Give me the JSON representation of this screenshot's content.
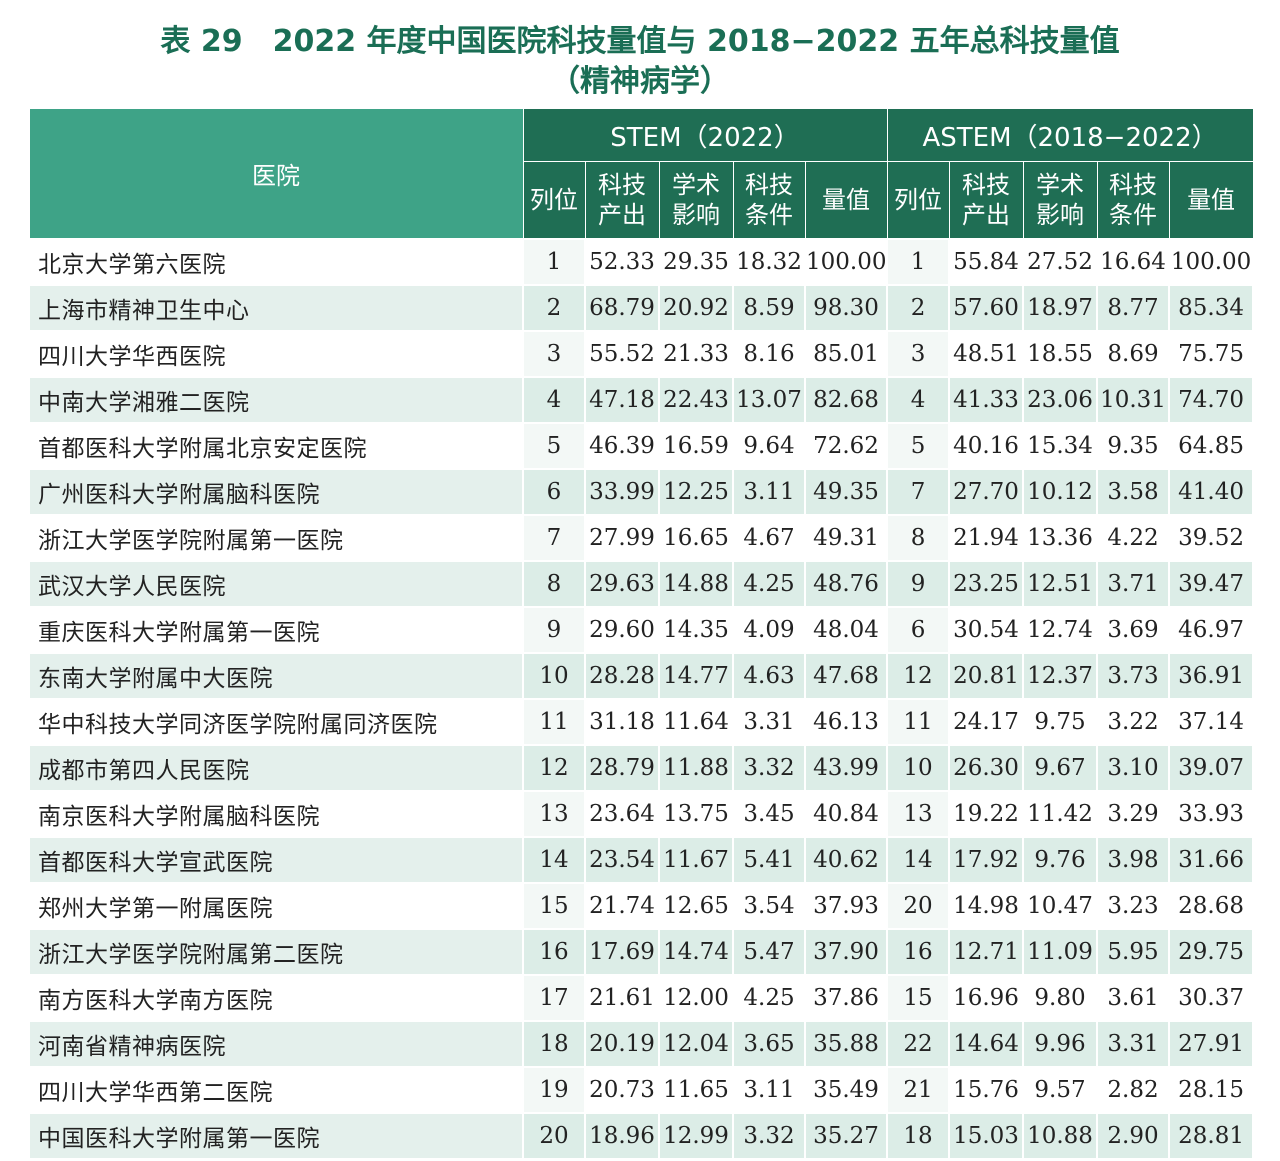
{
  "title": {
    "line1": "表 29　2022 年度中国医院科技量值与 2018−2022 五年总科技量值",
    "line2": "（精神病学）"
  },
  "header": {
    "hospital": "医院",
    "stem": "STEM（2022）",
    "astem": "ASTEM（2018−2022）",
    "columns": [
      "列位",
      "科技\n产出",
      "学术\n影响",
      "科技\n条件",
      "量值"
    ]
  },
  "rows": [
    {
      "name": "北京大学第六医院",
      "s": [
        "1",
        "52.33",
        "29.35",
        "18.32",
        "100.00"
      ],
      "a": [
        "1",
        "55.84",
        "27.52",
        "16.64",
        "100.00"
      ]
    },
    {
      "name": "上海市精神卫生中心",
      "s": [
        "2",
        "68.79",
        "20.92",
        "8.59",
        "98.30"
      ],
      "a": [
        "2",
        "57.60",
        "18.97",
        "8.77",
        "85.34"
      ]
    },
    {
      "name": "四川大学华西医院",
      "s": [
        "3",
        "55.52",
        "21.33",
        "8.16",
        "85.01"
      ],
      "a": [
        "3",
        "48.51",
        "18.55",
        "8.69",
        "75.75"
      ]
    },
    {
      "name": "中南大学湘雅二医院",
      "s": [
        "4",
        "47.18",
        "22.43",
        "13.07",
        "82.68"
      ],
      "a": [
        "4",
        "41.33",
        "23.06",
        "10.31",
        "74.70"
      ]
    },
    {
      "name": "首都医科大学附属北京安定医院",
      "s": [
        "5",
        "46.39",
        "16.59",
        "9.64",
        "72.62"
      ],
      "a": [
        "5",
        "40.16",
        "15.34",
        "9.35",
        "64.85"
      ]
    },
    {
      "name": "广州医科大学附属脑科医院",
      "s": [
        "6",
        "33.99",
        "12.25",
        "3.11",
        "49.35"
      ],
      "a": [
        "7",
        "27.70",
        "10.12",
        "3.58",
        "41.40"
      ]
    },
    {
      "name": "浙江大学医学院附属第一医院",
      "s": [
        "7",
        "27.99",
        "16.65",
        "4.67",
        "49.31"
      ],
      "a": [
        "8",
        "21.94",
        "13.36",
        "4.22",
        "39.52"
      ]
    },
    {
      "name": "武汉大学人民医院",
      "s": [
        "8",
        "29.63",
        "14.88",
        "4.25",
        "48.76"
      ],
      "a": [
        "9",
        "23.25",
        "12.51",
        "3.71",
        "39.47"
      ]
    },
    {
      "name": "重庆医科大学附属第一医院",
      "s": [
        "9",
        "29.60",
        "14.35",
        "4.09",
        "48.04"
      ],
      "a": [
        "6",
        "30.54",
        "12.74",
        "3.69",
        "46.97"
      ]
    },
    {
      "name": "东南大学附属中大医院",
      "s": [
        "10",
        "28.28",
        "14.77",
        "4.63",
        "47.68"
      ],
      "a": [
        "12",
        "20.81",
        "12.37",
        "3.73",
        "36.91"
      ]
    },
    {
      "name": "华中科技大学同济医学院附属同济医院",
      "s": [
        "11",
        "31.18",
        "11.64",
        "3.31",
        "46.13"
      ],
      "a": [
        "11",
        "24.17",
        "9.75",
        "3.22",
        "37.14"
      ]
    },
    {
      "name": "成都市第四人民医院",
      "s": [
        "12",
        "28.79",
        "11.88",
        "3.32",
        "43.99"
      ],
      "a": [
        "10",
        "26.30",
        "9.67",
        "3.10",
        "39.07"
      ]
    },
    {
      "name": "南京医科大学附属脑科医院",
      "s": [
        "13",
        "23.64",
        "13.75",
        "3.45",
        "40.84"
      ],
      "a": [
        "13",
        "19.22",
        "11.42",
        "3.29",
        "33.93"
      ]
    },
    {
      "name": "首都医科大学宣武医院",
      "s": [
        "14",
        "23.54",
        "11.67",
        "5.41",
        "40.62"
      ],
      "a": [
        "14",
        "17.92",
        "9.76",
        "3.98",
        "31.66"
      ]
    },
    {
      "name": "郑州大学第一附属医院",
      "s": [
        "15",
        "21.74",
        "12.65",
        "3.54",
        "37.93"
      ],
      "a": [
        "20",
        "14.98",
        "10.47",
        "3.23",
        "28.68"
      ]
    },
    {
      "name": "浙江大学医学院附属第二医院",
      "s": [
        "16",
        "17.69",
        "14.74",
        "5.47",
        "37.90"
      ],
      "a": [
        "16",
        "12.71",
        "11.09",
        "5.95",
        "29.75"
      ]
    },
    {
      "name": "南方医科大学南方医院",
      "s": [
        "17",
        "21.61",
        "12.00",
        "4.25",
        "37.86"
      ],
      "a": [
        "15",
        "16.96",
        "9.80",
        "3.61",
        "30.37"
      ]
    },
    {
      "name": "河南省精神病医院",
      "s": [
        "18",
        "20.19",
        "12.04",
        "3.65",
        "35.88"
      ],
      "a": [
        "22",
        "14.64",
        "9.96",
        "3.31",
        "27.91"
      ]
    },
    {
      "name": "四川大学华西第二医院",
      "s": [
        "19",
        "20.73",
        "11.65",
        "3.11",
        "35.49"
      ],
      "a": [
        "21",
        "15.76",
        "9.57",
        "2.82",
        "28.15"
      ]
    },
    {
      "name": "中国医科大学附属第一医院",
      "s": [
        "20",
        "18.96",
        "12.99",
        "3.32",
        "35.27"
      ],
      "a": [
        "18",
        "15.03",
        "10.88",
        "2.90",
        "28.81"
      ]
    }
  ]
}
